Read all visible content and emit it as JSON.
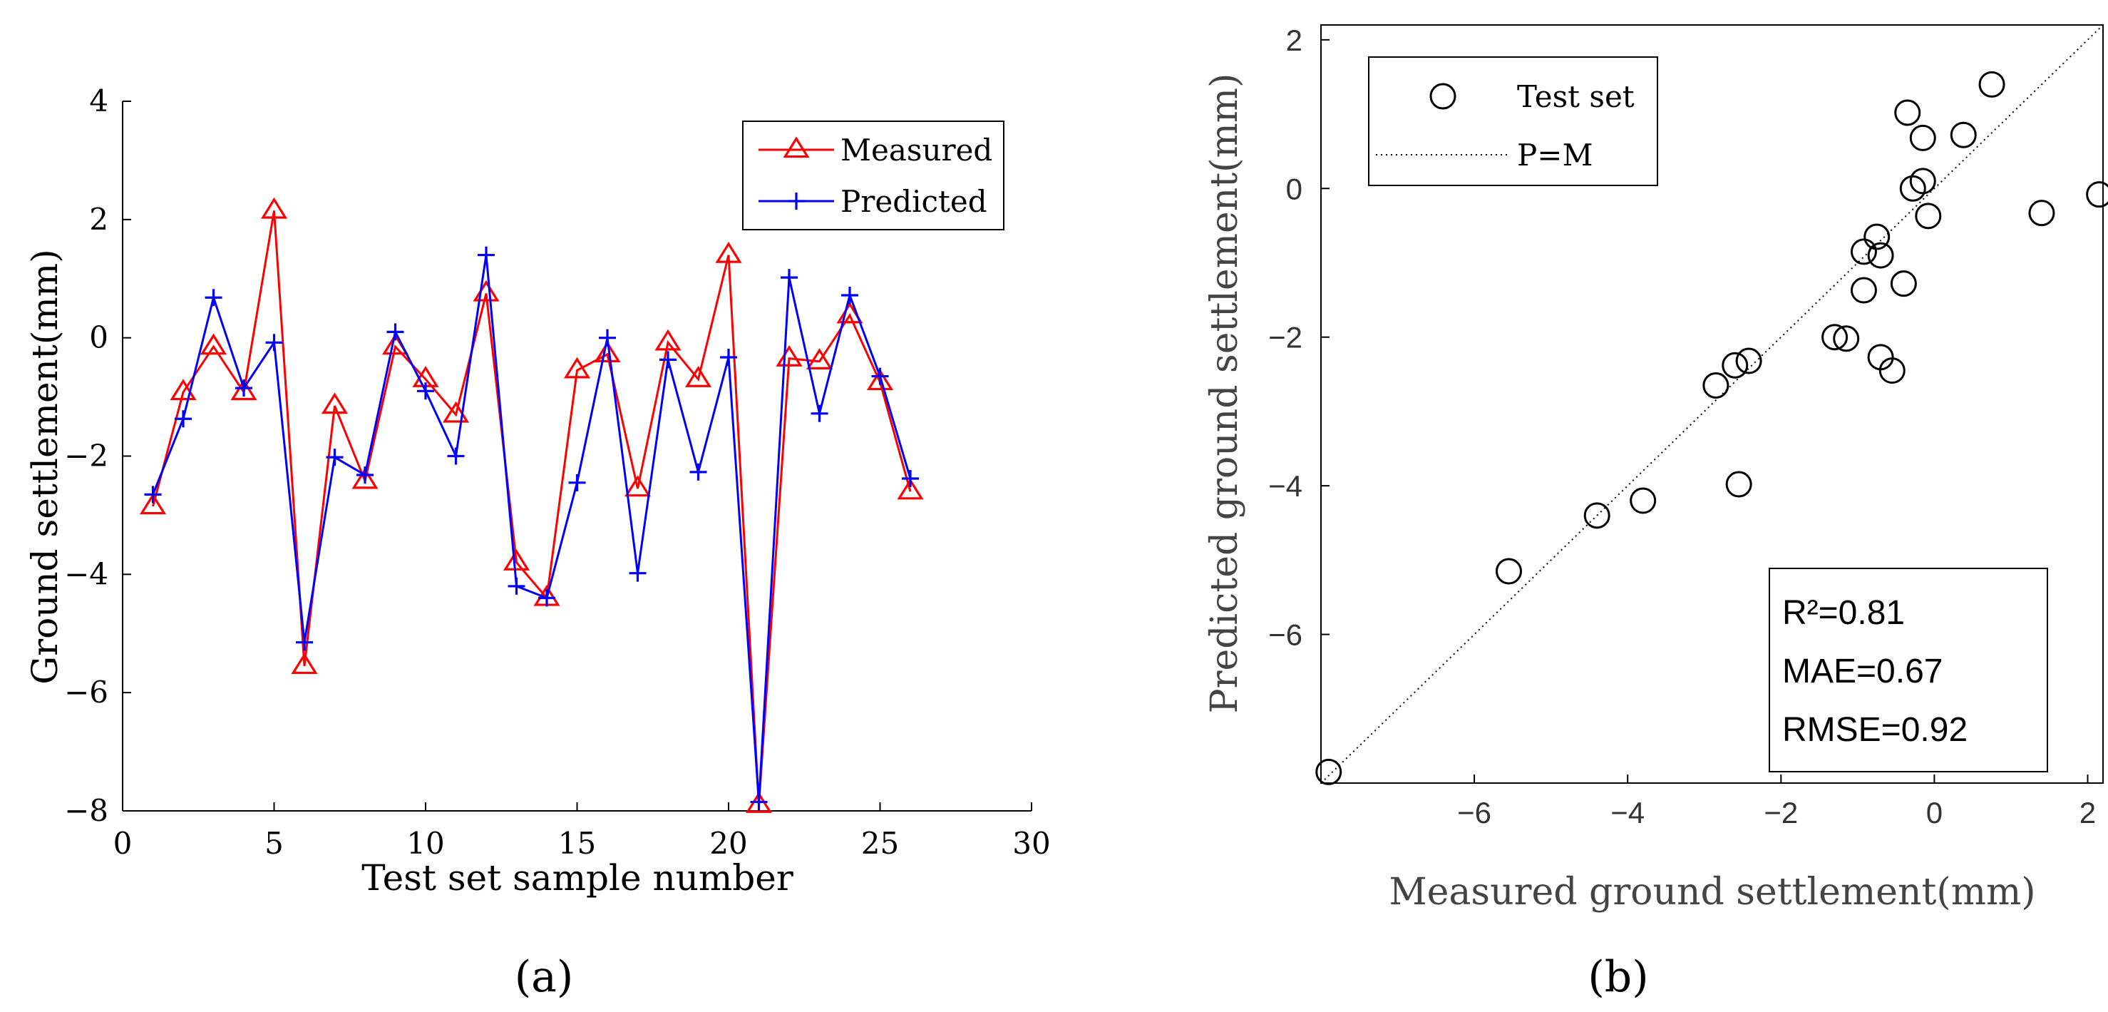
{
  "panels": [
    {
      "label": "(a)"
    },
    {
      "label": "(b)"
    }
  ],
  "chart_data": [
    {
      "type": "line",
      "xlabel": "Test set sample number",
      "ylabel": "Ground settlement(mm)",
      "xlim": [
        0,
        30
      ],
      "ylim": [
        -8,
        4
      ],
      "xticks": [
        0,
        5,
        10,
        15,
        20,
        25,
        30
      ],
      "yticks": [
        -8,
        -6,
        -4,
        -2,
        0,
        2,
        4
      ],
      "grid": false,
      "legend_position": "top-right",
      "x": [
        1,
        2,
        3,
        4,
        5,
        6,
        7,
        8,
        9,
        10,
        11,
        12,
        13,
        14,
        15,
        16,
        17,
        18,
        19,
        20,
        21,
        22,
        23,
        24,
        25,
        26
      ],
      "series": [
        {
          "name": "Measured",
          "color": "#ff0000",
          "marker": "triangle",
          "values": [
            -2.85,
            -0.92,
            -0.15,
            -0.92,
            2.15,
            -5.55,
            -1.15,
            -2.42,
            -0.15,
            -0.7,
            -1.3,
            0.75,
            -3.8,
            -4.4,
            -0.55,
            -0.28,
            -2.55,
            -0.08,
            -0.7,
            1.4,
            -7.9,
            -0.35,
            -0.4,
            0.38,
            -0.75,
            -2.6
          ]
        },
        {
          "name": "Predicted",
          "color": "#0000ff",
          "marker": "plus",
          "values": [
            -2.65,
            -1.37,
            0.68,
            -0.85,
            -0.08,
            -5.15,
            -2.02,
            -2.32,
            0.1,
            -0.9,
            -2.0,
            1.4,
            -4.2,
            -4.4,
            -2.45,
            0.0,
            -3.98,
            -0.37,
            -2.27,
            -0.33,
            -7.85,
            1.02,
            -1.28,
            0.72,
            -0.65,
            -2.38
          ]
        }
      ]
    },
    {
      "type": "scatter",
      "xlabel": "Measured ground settlement(mm)",
      "ylabel": "Predicted ground settlement(mm)",
      "xlim": [
        -8,
        2.2
      ],
      "ylim": [
        -8,
        2.2
      ],
      "xticks": [
        -6,
        -4,
        -2,
        0,
        2
      ],
      "yticks": [
        -6,
        -4,
        -2,
        0,
        2
      ],
      "grid": false,
      "legend_position": "top-left",
      "series": [
        {
          "name": "Test set",
          "color": "#000000",
          "marker": "circle",
          "points": [
            [
              -7.9,
              -7.85
            ],
            [
              -5.55,
              -5.15
            ],
            [
              -4.4,
              -4.4
            ],
            [
              -3.8,
              -4.2
            ],
            [
              -2.85,
              -2.65
            ],
            [
              -2.6,
              -2.38
            ],
            [
              -2.55,
              -3.98
            ],
            [
              -2.42,
              -2.32
            ],
            [
              -1.3,
              -2.0
            ],
            [
              -1.15,
              -2.02
            ],
            [
              -0.92,
              -0.85
            ],
            [
              -0.92,
              -1.37
            ],
            [
              -0.75,
              -0.65
            ],
            [
              -0.7,
              -0.9
            ],
            [
              -0.7,
              -2.27
            ],
            [
              -0.55,
              -2.45
            ],
            [
              -0.4,
              -1.28
            ],
            [
              -0.35,
              1.02
            ],
            [
              -0.28,
              0.0
            ],
            [
              -0.15,
              0.68
            ],
            [
              -0.15,
              0.1
            ],
            [
              -0.08,
              -0.37
            ],
            [
              0.38,
              0.72
            ],
            [
              0.75,
              1.4
            ],
            [
              1.4,
              -0.33
            ],
            [
              2.15,
              -0.08
            ]
          ]
        },
        {
          "name": "P=M",
          "color": "#000000",
          "style": "dotted",
          "points": [
            [
              -8,
              -8
            ],
            [
              2.2,
              2.2
            ]
          ]
        }
      ],
      "annotations": [
        "R²=0.81",
        "MAE=0.67",
        "RMSE=0.92"
      ]
    }
  ]
}
